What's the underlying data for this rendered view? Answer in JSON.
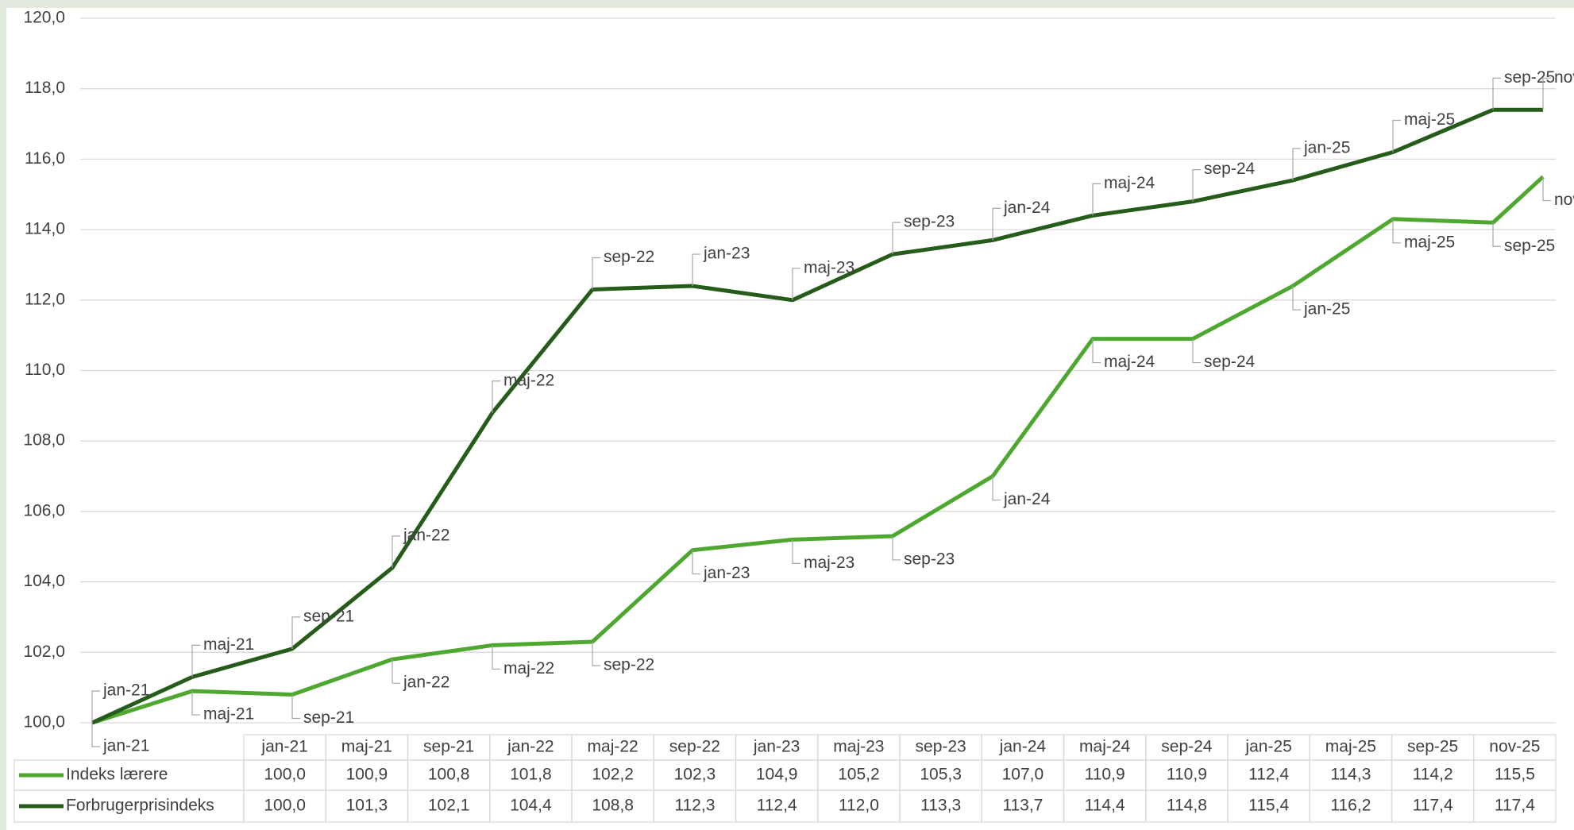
{
  "chart_data": {
    "type": "line",
    "categories": [
      "jan-21",
      "maj-21",
      "sep-21",
      "jan-22",
      "maj-22",
      "sep-22",
      "jan-23",
      "maj-23",
      "sep-23",
      "jan-24",
      "maj-24",
      "sep-24",
      "jan-25",
      "maj-25",
      "sep-25",
      "nov-25"
    ],
    "x": [
      "2021-01",
      "2021-05",
      "2021-09",
      "2022-01",
      "2022-05",
      "2022-09",
      "2023-01",
      "2023-05",
      "2023-09",
      "2024-01",
      "2024-05",
      "2024-09",
      "2025-01",
      "2025-05",
      "2025-09",
      "2025-11"
    ],
    "series": [
      {
        "name": "Indeks lærere",
        "color": "#4ea72e",
        "values": [
          100.0,
          100.9,
          100.8,
          101.8,
          102.2,
          102.3,
          104.9,
          105.2,
          105.3,
          107.0,
          110.9,
          110.9,
          112.4,
          114.3,
          114.2,
          115.5
        ],
        "value_labels": [
          "100,0",
          "100,9",
          "100,8",
          "101,8",
          "102,2",
          "102,3",
          "104,9",
          "105,2",
          "105,3",
          "107,0",
          "110,9",
          "110,9",
          "112,4",
          "114,3",
          "114,2",
          "115,5"
        ]
      },
      {
        "name": "Forbrugerprisindeks",
        "color": "#255c1a",
        "values": [
          100.0,
          101.3,
          102.1,
          104.4,
          108.8,
          112.3,
          112.4,
          112.0,
          113.3,
          113.7,
          114.4,
          114.8,
          115.4,
          116.2,
          117.4,
          117.4
        ],
        "value_labels": [
          "100,0",
          "101,3",
          "102,1",
          "104,4",
          "108,8",
          "112,3",
          "112,4",
          "112,0",
          "113,3",
          "113,7",
          "114,4",
          "114,8",
          "115,4",
          "116,2",
          "117,4",
          "117,4"
        ]
      }
    ],
    "ylim": [
      100,
      120
    ],
    "yticks": [
      {
        "value": 100,
        "label": "100,0"
      },
      {
        "value": 102,
        "label": "102,0"
      },
      {
        "value": 104,
        "label": "104,0"
      },
      {
        "value": 106,
        "label": "106,0"
      },
      {
        "value": 108,
        "label": "108,0"
      },
      {
        "value": 110,
        "label": "110,0"
      },
      {
        "value": 112,
        "label": "112,0"
      },
      {
        "value": 114,
        "label": "114,0"
      },
      {
        "value": 116,
        "label": "116,0"
      },
      {
        "value": 118,
        "label": "118,0"
      },
      {
        "value": 120,
        "label": "120,0"
      }
    ],
    "grid": true
  }
}
